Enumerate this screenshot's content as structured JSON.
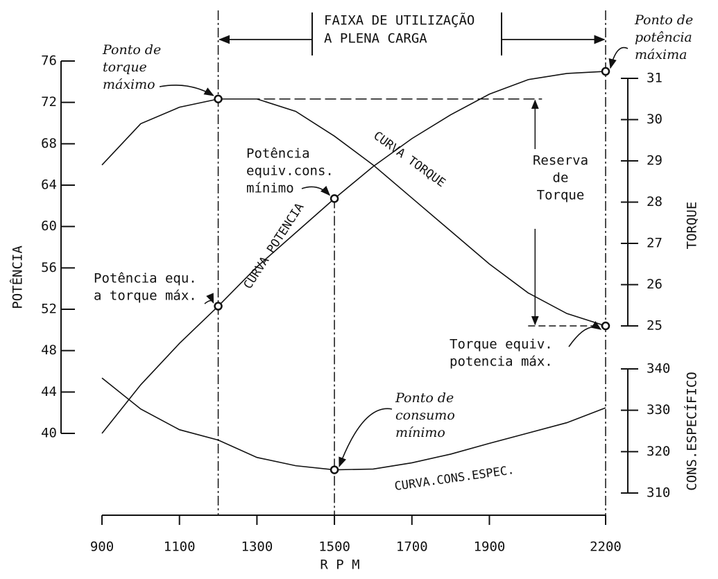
{
  "chart_data": {
    "type": "line",
    "xlabel": "R P M",
    "ylabel": "POTÊNCIA",
    "y2label": "TORQUE",
    "y3label": "CONS.ESPECÍFICO",
    "x": [
      900,
      1000,
      1100,
      1200,
      1300,
      1400,
      1500,
      1600,
      1700,
      1800,
      1900,
      2000,
      2100,
      2200
    ],
    "xlim": [
      900,
      2200
    ],
    "xticks": [
      900,
      1100,
      1300,
      1500,
      1700,
      1900,
      2200
    ],
    "ylim": [
      40,
      76
    ],
    "yticks": [
      40,
      44,
      48,
      52,
      56,
      60,
      64,
      68,
      72,
      76
    ],
    "y2lim": [
      25,
      31
    ],
    "y2ticks": [
      25,
      26,
      27,
      28,
      29,
      30,
      31
    ],
    "y3lim": [
      310,
      340
    ],
    "y3ticks": [
      310,
      320,
      330,
      340
    ],
    "series": [
      {
        "name": "CURVA POTENCIA",
        "color": "#111111",
        "axis": "y",
        "values": [
          40.0,
          44.7,
          48.7,
          52.3,
          56.1,
          59.4,
          62.7,
          65.8,
          68.5,
          70.8,
          72.8,
          74.2,
          74.8,
          75.0
        ]
      },
      {
        "name": "CURVA TORQUE",
        "color": "#111111",
        "axis": "y2",
        "values": [
          28.9,
          29.9,
          30.3,
          30.5,
          30.5,
          30.2,
          29.6,
          28.9,
          28.1,
          27.3,
          26.5,
          25.8,
          25.3,
          25.0
        ]
      },
      {
        "name": "CURVA.CONS.ESPEC.",
        "color": "#111111",
        "axis": "y3",
        "values": [
          337.8,
          330.3,
          325.3,
          322.8,
          318.6,
          316.6,
          315.6,
          315.8,
          317.3,
          319.4,
          322.0,
          324.5,
          327.0,
          330.6
        ]
      }
    ],
    "band_label": [
      "FAIXA DE UTILIZAÇÃO",
      "A PLENA CARGA"
    ],
    "annotations": [
      {
        "lines": [
          "Ponto de",
          "torque",
          "máximo"
        ]
      },
      {
        "lines": [
          "Ponto de",
          "potência",
          "máxima"
        ]
      },
      {
        "lines": [
          "Potência",
          "equiv.cons.",
          "mínimo"
        ]
      },
      {
        "lines": [
          "Reserva",
          "de",
          "Torque"
        ]
      },
      {
        "lines": [
          "Potência equ.",
          "a torque máx."
        ]
      },
      {
        "lines": [
          "Torque equiv.",
          "potencia máx."
        ]
      },
      {
        "lines": [
          "Ponto de",
          "consumo",
          "mínimo"
        ]
      }
    ]
  }
}
